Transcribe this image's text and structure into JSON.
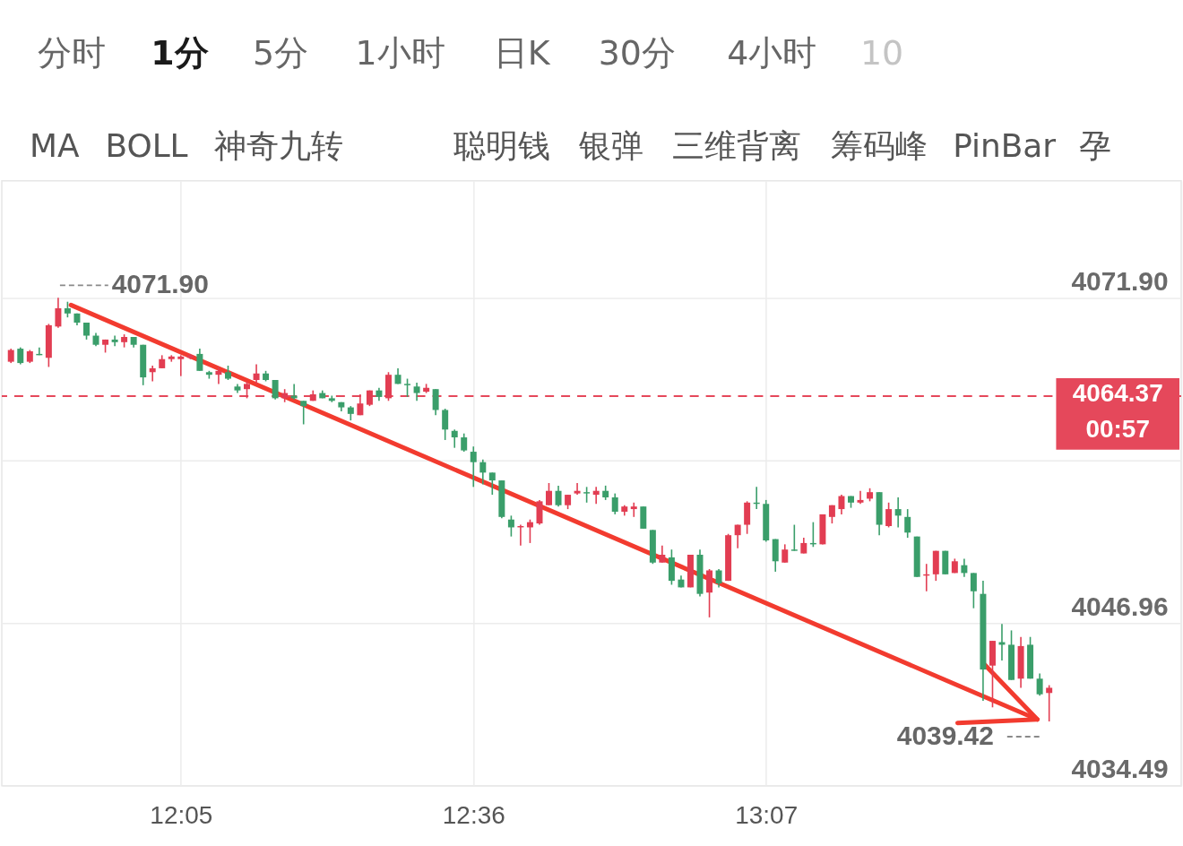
{
  "chart_data": {
    "type": "candlestick",
    "x": [
      11.7833,
      11.8,
      11.8167,
      11.8333,
      11.85,
      11.8667,
      11.8833,
      11.9,
      11.9167,
      11.9333,
      11.95,
      11.9667,
      11.9833,
      12.0,
      12.0167,
      12.0333,
      12.05,
      12.0667,
      12.0833,
      12.1,
      12.1167,
      12.1333,
      12.15,
      12.1667,
      12.1833,
      12.2,
      12.2167,
      12.2333,
      12.25,
      12.2667,
      12.2833,
      12.3,
      12.3167,
      12.3333,
      12.35,
      12.3667,
      12.3833,
      12.4,
      12.4167,
      12.4333,
      12.45,
      12.4667,
      12.4833,
      12.5,
      12.5167,
      12.5333,
      12.55,
      12.5667,
      12.5833,
      12.6,
      12.6167,
      12.6333,
      12.65,
      12.6667,
      12.6833,
      12.7,
      12.7167,
      12.7333,
      12.75,
      12.7667,
      12.7833,
      12.8,
      12.8167,
      12.8333,
      12.85,
      12.8667,
      12.8833,
      12.9,
      12.9167,
      12.9333,
      12.95,
      12.9667,
      12.9833,
      13.0,
      13.0167,
      13.0333,
      13.05,
      13.0667,
      13.0833,
      13.1,
      13.1167,
      13.1333,
      13.15,
      13.1667,
      13.1833,
      13.2,
      13.2167,
      13.2333,
      13.25,
      13.2667,
      13.2833,
      13.3,
      13.3167,
      13.3333,
      13.35,
      13.3667,
      13.3833,
      13.4,
      13.4167,
      13.4333,
      13.45,
      13.4667,
      13.4833,
      13.5,
      13.5167,
      13.5333,
      13.55,
      13.5667,
      13.5833,
      13.6,
      13.6167
    ],
    "ohlc": [
      [
        4067.0,
        4068.0,
        4066.9,
        4067.9
      ],
      [
        4068.0,
        4068.1,
        4066.8,
        4066.9
      ],
      [
        4067.0,
        4067.9,
        4066.9,
        4067.8
      ],
      [
        4067.6,
        4068.1,
        4067.5,
        4067.5
      ],
      [
        4067.3,
        4069.9,
        4066.6,
        4069.8
      ],
      [
        4069.7,
        4071.9,
        4069.6,
        4071.1
      ],
      [
        4071.1,
        4071.6,
        4070.4,
        4070.7
      ],
      [
        4070.7,
        4070.7,
        4069.8,
        4070.0
      ],
      [
        4070.0,
        4070.0,
        4068.7,
        4069.0
      ],
      [
        4069.0,
        4069.2,
        4068.2,
        4068.3
      ],
      [
        4068.3,
        4068.7,
        4067.7,
        4068.7
      ],
      [
        4068.7,
        4069.0,
        4068.2,
        4068.5
      ],
      [
        4068.5,
        4069.1,
        4068.1,
        4068.9
      ],
      [
        4068.9,
        4068.9,
        4068.1,
        4068.3
      ],
      [
        4068.3,
        4068.3,
        4065.2,
        4065.8
      ],
      [
        4066.2,
        4066.7,
        4065.5,
        4066.5
      ],
      [
        4066.5,
        4067.5,
        4066.5,
        4067.2
      ],
      [
        4067.2,
        4067.5,
        4067.0,
        4067.4
      ],
      [
        4067.2,
        4067.5,
        4065.9,
        4067.4
      ],
      [
        4067.3,
        4067.6,
        4067.2,
        4067.5
      ],
      [
        4067.6,
        4068.0,
        4066.3,
        4066.3
      ],
      [
        4066.2,
        4066.3,
        4065.7,
        4066.0
      ],
      [
        4066.0,
        4066.6,
        4065.3,
        4066.3
      ],
      [
        4066.2,
        4066.7,
        4065.6,
        4065.7
      ],
      [
        4065.1,
        4065.3,
        4064.6,
        4064.8
      ],
      [
        4064.9,
        4065.5,
        4064.2,
        4065.3
      ],
      [
        4065.6,
        4066.8,
        4065.3,
        4066.1
      ],
      [
        4066.1,
        4066.3,
        4065.5,
        4065.6
      ],
      [
        4065.6,
        4065.6,
        4064.1,
        4064.2
      ],
      [
        4064.2,
        4064.9,
        4063.9,
        4064.6
      ],
      [
        4064.4,
        4065.3,
        4064.1,
        4064.2
      ],
      [
        4064.0,
        4064.0,
        4062.2,
        4063.6
      ],
      [
        4064.0,
        4064.8,
        4064.0,
        4064.5
      ],
      [
        4064.6,
        4064.8,
        4064.2,
        4064.2
      ],
      [
        4064.2,
        4064.4,
        4063.9,
        4064.0
      ],
      [
        4063.9,
        4063.9,
        4063.2,
        4063.5
      ],
      [
        4063.5,
        4063.6,
        4062.5,
        4063.0
      ],
      [
        4062.9,
        4064.5,
        4062.9,
        4063.8
      ],
      [
        4063.7,
        4064.8,
        4063.6,
        4064.8
      ],
      [
        4064.8,
        4065.0,
        4064.0,
        4064.3
      ],
      [
        4064.2,
        4066.2,
        4064.0,
        4066.0
      ],
      [
        4066.0,
        4066.5,
        4065.3,
        4065.3
      ],
      [
        4065.3,
        4065.7,
        4064.3,
        4065.2
      ],
      [
        4065.1,
        4065.4,
        4064.0,
        4064.6
      ],
      [
        4064.7,
        4065.3,
        4064.6,
        4065.0
      ],
      [
        4064.9,
        4064.9,
        4062.9,
        4063.3
      ],
      [
        4063.3,
        4063.4,
        4061.0,
        4061.8
      ],
      [
        4061.7,
        4061.8,
        4060.4,
        4061.2
      ],
      [
        4061.2,
        4061.5,
        4060.1,
        4060.2
      ],
      [
        4060.1,
        4060.5,
        4057.4,
        4059.3
      ],
      [
        4059.3,
        4059.5,
        4057.6,
        4058.5
      ],
      [
        4058.5,
        4058.5,
        4056.8,
        4057.9
      ],
      [
        4057.9,
        4057.9,
        4055.0,
        4055.1
      ],
      [
        4054.9,
        4055.2,
        4053.6,
        4054.3
      ],
      [
        4054.3,
        4054.5,
        4052.9,
        4054.4
      ],
      [
        4054.3,
        4054.9,
        4053.1,
        4054.7
      ],
      [
        4054.6,
        4056.4,
        4054.5,
        4056.3
      ],
      [
        4056.0,
        4057.7,
        4056.0,
        4057.1
      ],
      [
        4057.1,
        4057.5,
        4055.9,
        4056.0
      ],
      [
        4056.0,
        4056.8,
        4055.7,
        4056.8
      ],
      [
        4056.9,
        4057.7,
        4056.8,
        4057.1
      ],
      [
        4057.0,
        4057.4,
        4056.2,
        4056.9
      ],
      [
        4056.8,
        4057.4,
        4056.1,
        4057.1
      ],
      [
        4057.1,
        4057.5,
        4056.4,
        4056.6
      ],
      [
        4056.6,
        4056.9,
        4055.3,
        4055.5
      ],
      [
        4055.5,
        4056.0,
        4055.2,
        4055.9
      ],
      [
        4055.7,
        4056.2,
        4055.1,
        4055.9
      ],
      [
        4055.9,
        4055.9,
        4054.2,
        4054.2
      ],
      [
        4054.1,
        4054.1,
        4051.5,
        4051.6
      ],
      [
        4051.6,
        4052.9,
        4051.6,
        4052.2
      ],
      [
        4052.0,
        4052.6,
        4049.9,
        4050.2
      ],
      [
        4050.3,
        4050.6,
        4049.7,
        4049.7
      ],
      [
        4049.7,
        4052.2,
        4049.7,
        4052.2
      ],
      [
        4052.2,
        4052.6,
        4049.0,
        4049.2
      ],
      [
        4049.3,
        4051.1,
        4047.4,
        4051.0
      ],
      [
        4051.0,
        4051.1,
        4049.7,
        4050.0
      ],
      [
        4050.2,
        4053.8,
        4050.2,
        4053.7
      ],
      [
        4053.7,
        4054.5,
        4052.7,
        4054.5
      ],
      [
        4054.5,
        4056.3,
        4053.8,
        4056.2
      ],
      [
        4056.2,
        4057.4,
        4055.7,
        4056.1
      ],
      [
        4056.1,
        4056.4,
        4053.2,
        4053.3
      ],
      [
        4053.4,
        4053.4,
        4050.9,
        4051.7
      ],
      [
        4051.6,
        4053.0,
        4051.6,
        4052.6
      ],
      [
        4052.6,
        4054.5,
        4052.5,
        4052.5
      ],
      [
        4052.3,
        4053.5,
        4052.3,
        4053.1
      ],
      [
        4053.1,
        4054.7,
        4052.8,
        4053.0
      ],
      [
        4053.0,
        4055.3,
        4053.0,
        4055.3
      ],
      [
        4055.1,
        4056.0,
        4054.6,
        4056.0
      ],
      [
        4055.7,
        4056.8,
        4055.3,
        4056.7
      ],
      [
        4056.7,
        4056.7,
        4055.8,
        4056.2
      ],
      [
        4056.2,
        4057.1,
        4056.1,
        4056.4
      ],
      [
        4056.5,
        4057.3,
        4056.3,
        4057.0
      ],
      [
        4057.0,
        4057.0,
        4053.7,
        4054.5
      ],
      [
        4054.4,
        4056.2,
        4054.3,
        4055.7
      ],
      [
        4055.7,
        4056.6,
        4054.3,
        4055.2
      ],
      [
        4055.1,
        4055.7,
        4053.5,
        4053.9
      ],
      [
        4053.6,
        4053.6,
        4050.5,
        4050.5
      ],
      [
        4050.6,
        4051.5,
        4049.4,
        4050.7
      ],
      [
        4050.7,
        4052.5,
        4050.2,
        4052.5
      ],
      [
        4052.5,
        4052.5,
        4050.7,
        4050.7
      ],
      [
        4050.8,
        4051.9,
        4050.8,
        4051.7
      ],
      [
        4051.4,
        4051.9,
        4050.5,
        4050.8
      ],
      [
        4050.8,
        4050.8,
        4048.1,
        4049.4
      ],
      [
        4049.2,
        4050.2,
        4041.0,
        4043.4
      ],
      [
        4043.7,
        4045.6,
        4040.5,
        4045.6
      ],
      [
        4045.5,
        4046.9,
        4044.1,
        4045.3
      ],
      [
        4045.3,
        4046.4,
        4042.6,
        4042.6
      ],
      [
        4042.7,
        4045.9,
        4042.0,
        4045.2
      ],
      [
        4045.3,
        4045.9,
        4042.7,
        4042.7
      ],
      [
        4042.7,
        4043.1,
        4041.4,
        4041.5
      ],
      [
        4041.6,
        4042.2,
        4039.42,
        4042.0
      ]
    ],
    "colors": [
      "#e23d52",
      "#3a9e6a",
      "#e23d52",
      "#3a9e6a",
      "#e23d52",
      "#e23d52",
      "#3a9e6a",
      "#3a9e6a",
      "#3a9e6a",
      "#3a9e6a",
      "#e23d52",
      "#3a9e6a",
      "#e23d52",
      "#3a9e6a",
      "#3a9e6a",
      "#e23d52",
      "#e23d52",
      "#e23d52",
      "#e23d52",
      "#e23d52",
      "#3a9e6a",
      "#3a9e6a",
      "#e23d52",
      "#3a9e6a",
      "#3a9e6a",
      "#e23d52",
      "#e23d52",
      "#3a9e6a",
      "#3a9e6a",
      "#e23d52",
      "#3a9e6a",
      "#3a9e6a",
      "#e23d52",
      "#3a9e6a",
      "#3a9e6a",
      "#3a9e6a",
      "#3a9e6a",
      "#e23d52",
      "#e23d52",
      "#3a9e6a",
      "#e23d52",
      "#3a9e6a",
      "#3a9e6a",
      "#3a9e6a",
      "#e23d52",
      "#3a9e6a",
      "#3a9e6a",
      "#3a9e6a",
      "#3a9e6a",
      "#3a9e6a",
      "#3a9e6a",
      "#3a9e6a",
      "#3a9e6a",
      "#3a9e6a",
      "#e23d52",
      "#e23d52",
      "#e23d52",
      "#e23d52",
      "#3a9e6a",
      "#e23d52",
      "#e23d52",
      "#3a9e6a",
      "#e23d52",
      "#3a9e6a",
      "#3a9e6a",
      "#e23d52",
      "#e23d52",
      "#3a9e6a",
      "#3a9e6a",
      "#e23d52",
      "#3a9e6a",
      "#3a9e6a",
      "#e23d52",
      "#3a9e6a",
      "#e23d52",
      "#3a9e6a",
      "#e23d52",
      "#e23d52",
      "#e23d52",
      "#3a9e6a",
      "#3a9e6a",
      "#3a9e6a",
      "#e23d52",
      "#3a9e6a",
      "#e23d52",
      "#3a9e6a",
      "#e23d52",
      "#e23d52",
      "#e23d52",
      "#3a9e6a",
      "#e23d52",
      "#e23d52",
      "#3a9e6a",
      "#e23d52",
      "#3a9e6a",
      "#3a9e6a",
      "#3a9e6a",
      "#e23d52",
      "#e23d52",
      "#3a9e6a",
      "#e23d52",
      "#3a9e6a",
      "#3a9e6a",
      "#3a9e6a",
      "#e23d52",
      "#3a9e6a",
      "#3a9e6a",
      "#e23d52",
      "#3a9e6a",
      "#3a9e6a",
      "#e23d52"
    ],
    "series": [
      {
        "type": "line",
        "x": [
          11.8892,
          13.5958
        ],
        "values": [
          4071.35,
          4039.57
        ],
        "color": "#f23b2f"
      },
      {
        "type": "line",
        "x": [
          13.5003,
          13.5958,
          13.4549
        ],
        "values": [
          4043.89,
          4039.57,
          4039.3
        ],
        "color": "#f23b2f"
      }
    ],
    "xlim": [
      11.775,
      13.842
    ],
    "ylim": [
      4034.49,
      4080.87
    ],
    "xticks": [
      {
        "value": 12.0833,
        "label": "12:05"
      },
      {
        "value": 12.6,
        "label": "12:36"
      },
      {
        "value": 13.1167,
        "label": "13:07"
      }
    ],
    "yticks": [
      4034.49,
      4046.96,
      {
        "value": 4059.43,
        "label": null
      },
      {
        "value": 4071.9,
        "label": "4071.90"
      }
    ],
    "grid": true,
    "ref_lines": [
      {
        "axis": "y",
        "value": 4064.37,
        "label": "4064.37\n00:57",
        "color": "#e5485b",
        "line_style": "dashed"
      }
    ],
    "annotations": [
      "分时",
      "1分",
      "5分",
      "1小时",
      "日K",
      "30分",
      "4小时",
      "10",
      "MA",
      "BOLL",
      "神奇九转",
      "聪明钱",
      "银弹",
      "三维背离",
      "筹码峰",
      "PinBar",
      "孕",
      {
        "text": "4071.90",
        "x": 11.8667,
        "y": 4071.9
      },
      {
        "text": "4039.42",
        "x": 13.6167,
        "y": 4039.42
      }
    ]
  }
}
